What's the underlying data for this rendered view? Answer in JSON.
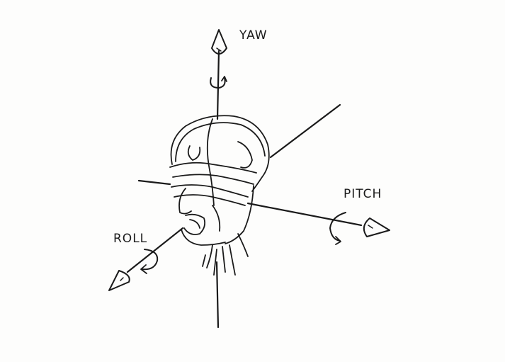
{
  "labels": {
    "yaw": "YAW",
    "pitch": "PITCH",
    "roll": "ROLL"
  },
  "colors": {
    "ink": "#1a1a1a",
    "paper": "#fdfdfc"
  }
}
